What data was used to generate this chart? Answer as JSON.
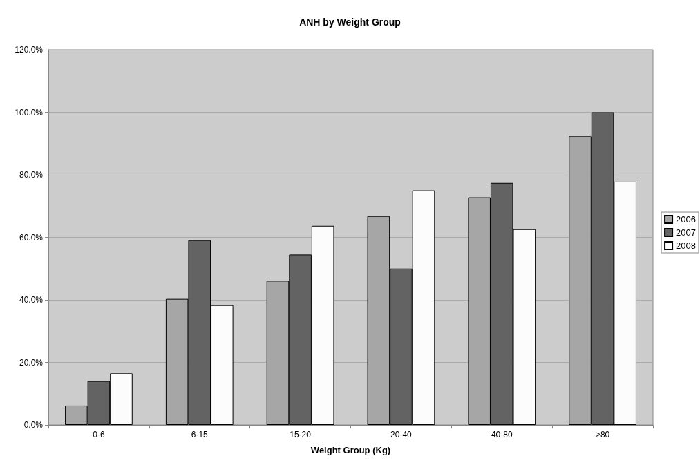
{
  "chart_data": {
    "type": "bar",
    "title": "ANH by Weight Group",
    "xlabel": "Weight Group (Kg)",
    "categories": [
      "0-6",
      "6-15",
      "15-20",
      "20-40",
      "40-80",
      ">80"
    ],
    "series": [
      {
        "name": "2006",
        "color": "#a6a6a6",
        "values": [
          6.2,
          40.3,
          46.1,
          66.8,
          72.8,
          92.3
        ]
      },
      {
        "name": "2007",
        "color": "#636363",
        "values": [
          14.0,
          59.1,
          54.5,
          50.0,
          77.4,
          100.0
        ]
      },
      {
        "name": "2008",
        "color": "#fcfcfc",
        "values": [
          16.5,
          38.3,
          63.7,
          75.0,
          62.6,
          77.8
        ]
      }
    ],
    "ylim": [
      0,
      120
    ],
    "yticks": [
      {
        "value": 0,
        "label": "0.0%"
      },
      {
        "value": 20,
        "label": "20.0%"
      },
      {
        "value": 40,
        "label": "40.0%"
      },
      {
        "value": 60,
        "label": "60.0%"
      },
      {
        "value": 80,
        "label": "80.0%"
      },
      {
        "value": 100,
        "label": "100.0%"
      },
      {
        "value": 120,
        "label": "120.0%"
      }
    ],
    "grid": "y",
    "legend": "right"
  }
}
